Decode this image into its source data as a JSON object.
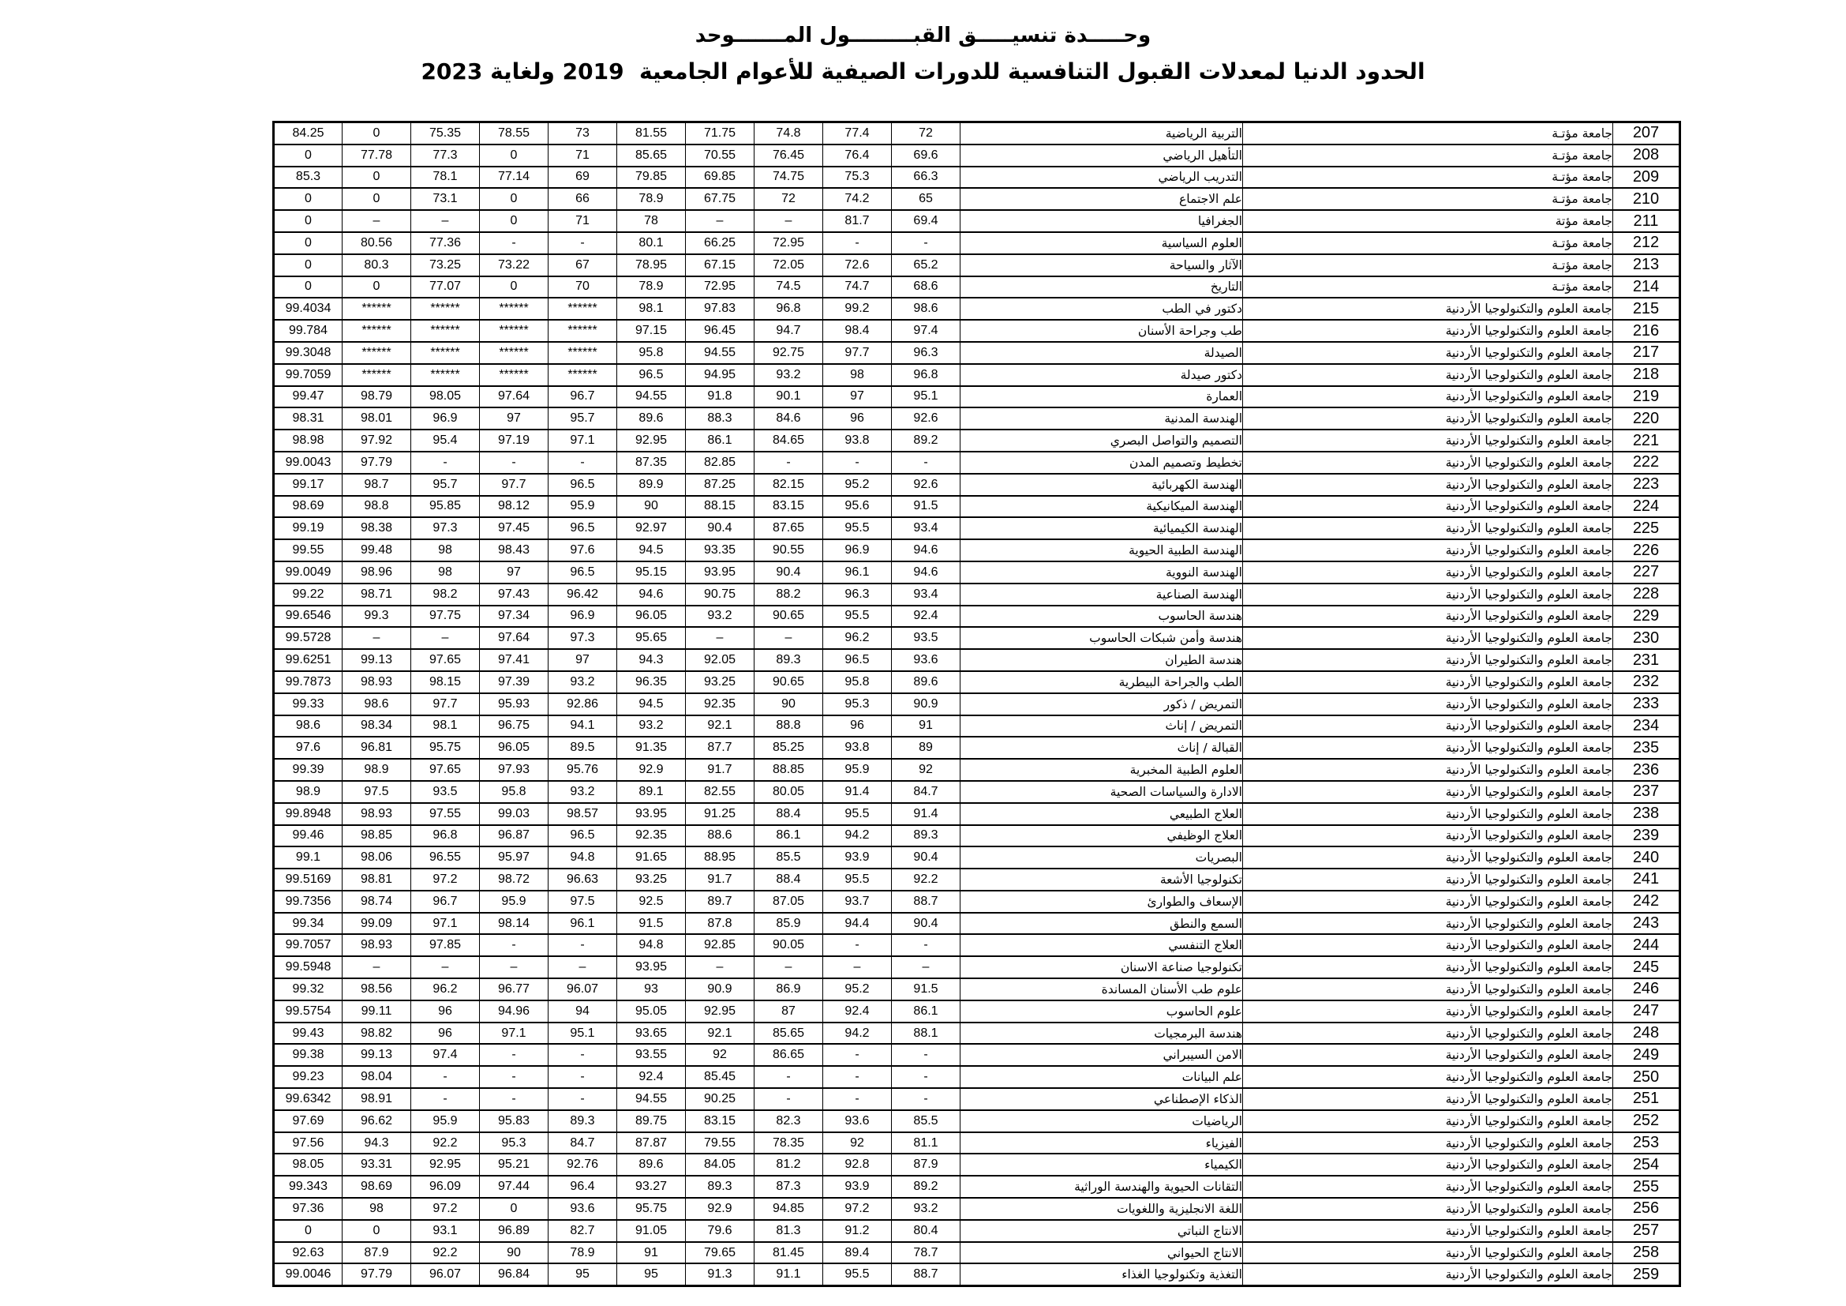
{
  "page": {
    "title_line1": "وحـــــدة تنسيـــــق القبـــــــــول المـــــــوحد",
    "title_line2": "الحدود الدنيا لمعدلات القبول التنافسية للدورات الصيفية للأعوام الجامعية  2019 ولغاية 2023"
  },
  "table": {
    "rows": [
      {
        "no": "207",
        "university": "جامعة مؤتـة",
        "program": "التربية الرياضية",
        "values": [
          "84.25",
          "0",
          "75.35",
          "78.55",
          "73",
          "81.55",
          "71.75",
          "74.8",
          "77.4",
          "72"
        ]
      },
      {
        "no": "208",
        "university": "جامعة مؤتـة",
        "program": "التأهيل الرياضي",
        "values": [
          "0",
          "77.78",
          "77.3",
          "0",
          "71",
          "85.65",
          "70.55",
          "76.45",
          "76.4",
          "69.6"
        ]
      },
      {
        "no": "209",
        "university": "جامعة مؤتـة",
        "program": "التدريب الرياضي",
        "values": [
          "85.3",
          "0",
          "78.1",
          "77.14",
          "69",
          "79.85",
          "69.85",
          "74.75",
          "75.3",
          "66.3"
        ]
      },
      {
        "no": "210",
        "university": "جامعة مؤتـة",
        "program": "علم الاجتماع",
        "values": [
          "0",
          "0",
          "73.1",
          "0",
          "66",
          "78.9",
          "67.75",
          "72",
          "74.2",
          "65"
        ]
      },
      {
        "no": "211",
        "university": "جامعة مؤتة",
        "program": "الجغرافيا",
        "values": [
          "0",
          "–",
          "–",
          "0",
          "71",
          "78",
          "–",
          "–",
          "81.7",
          "69.4"
        ]
      },
      {
        "no": "212",
        "university": "جامعة مؤتـة",
        "program": "العلوم السياسية",
        "values": [
          "0",
          "80.56",
          "77.36",
          "-",
          "-",
          "80.1",
          "66.25",
          "72.95",
          "-",
          "-"
        ]
      },
      {
        "no": "213",
        "university": "جامعة مؤتـة",
        "program": "الآثار والسياحة",
        "values": [
          "0",
          "80.3",
          "73.25",
          "73.22",
          "67",
          "78.95",
          "67.15",
          "72.05",
          "72.6",
          "65.2"
        ]
      },
      {
        "no": "214",
        "university": "جامعة مؤتـة",
        "program": "التاريخ",
        "values": [
          "0",
          "0",
          "77.07",
          "0",
          "70",
          "78.9",
          "72.95",
          "74.5",
          "74.7",
          "68.6"
        ]
      },
      {
        "no": "215",
        "university": "جامعة العلوم والتكنولوجيا الأردنية",
        "program": "دكتور في الطب",
        "values": [
          "99.4034",
          "******",
          "******",
          "******",
          "******",
          "98.1",
          "97.83",
          "96.8",
          "99.2",
          "98.6"
        ]
      },
      {
        "no": "216",
        "university": "جامعة العلوم والتكنولوجيا الأردنية",
        "program": "طب وجراحة الأسنان",
        "values": [
          "99.784",
          "******",
          "******",
          "******",
          "******",
          "97.15",
          "96.45",
          "94.7",
          "98.4",
          "97.4"
        ]
      },
      {
        "no": "217",
        "university": "جامعة العلوم والتكنولوجيا الأردنية",
        "program": "الصيدلة",
        "values": [
          "99.3048",
          "******",
          "******",
          "******",
          "******",
          "95.8",
          "94.55",
          "92.75",
          "97.7",
          "96.3"
        ]
      },
      {
        "no": "218",
        "university": "جامعة العلوم والتكنولوجيا الأردنية",
        "program": "دكتور صيدلة",
        "values": [
          "99.7059",
          "******",
          "******",
          "******",
          "******",
          "96.5",
          "94.95",
          "93.2",
          "98",
          "96.8"
        ]
      },
      {
        "no": "219",
        "university": "جامعة العلوم والتكنولوجيا الأردنية",
        "program": "العمارة",
        "values": [
          "99.47",
          "98.79",
          "98.05",
          "97.64",
          "96.7",
          "94.55",
          "91.8",
          "90.1",
          "97",
          "95.1"
        ]
      },
      {
        "no": "220",
        "university": "جامعة العلوم والتكنولوجيا الأردنية",
        "program": "الهندسة المدنية",
        "values": [
          "98.31",
          "98.01",
          "96.9",
          "97",
          "95.7",
          "89.6",
          "88.3",
          "84.6",
          "96",
          "92.6"
        ]
      },
      {
        "no": "221",
        "university": "جامعة العلوم والتكنولوجيا الأردنية",
        "program": "التصميم والتواصل البصري",
        "values": [
          "98.98",
          "97.92",
          "95.4",
          "97.19",
          "97.1",
          "92.95",
          "86.1",
          "84.65",
          "93.8",
          "89.2"
        ]
      },
      {
        "no": "222",
        "university": "جامعة العلوم والتكنولوجيا الأردنية",
        "program": "تخطيط وتصميم المدن",
        "values": [
          "99.0043",
          "97.79",
          "-",
          "-",
          "-",
          "87.35",
          "82.85",
          "-",
          "-",
          "-"
        ]
      },
      {
        "no": "223",
        "university": "جامعة العلوم والتكنولوجيا الأردنية",
        "program": "الهندسة الكهربائية",
        "values": [
          "99.17",
          "98.7",
          "95.7",
          "97.7",
          "96.5",
          "89.9",
          "87.25",
          "82.15",
          "95.2",
          "92.6"
        ]
      },
      {
        "no": "224",
        "university": "جامعة العلوم والتكنولوجيا الأردنية",
        "program": "الهندسة الميكانيكية",
        "values": [
          "98.69",
          "98.8",
          "95.85",
          "98.12",
          "95.9",
          "90",
          "88.15",
          "83.15",
          "95.6",
          "91.5"
        ]
      },
      {
        "no": "225",
        "university": "جامعة العلوم والتكنولوجيا الأردنية",
        "program": "الهندسة الكيميائية",
        "values": [
          "99.19",
          "98.38",
          "97.3",
          "97.45",
          "96.5",
          "92.97",
          "90.4",
          "87.65",
          "95.5",
          "93.4"
        ]
      },
      {
        "no": "226",
        "university": "جامعة العلوم والتكنولوجيا الأردنية",
        "program": "الهندسة الطبية الحيوية",
        "values": [
          "99.55",
          "99.48",
          "98",
          "98.43",
          "97.6",
          "94.5",
          "93.35",
          "90.55",
          "96.9",
          "94.6"
        ]
      },
      {
        "no": "227",
        "university": "جامعة العلوم والتكنولوجيا الأردنية",
        "program": "الهندسة النووية",
        "values": [
          "99.0049",
          "98.96",
          "98",
          "97",
          "96.5",
          "95.15",
          "93.95",
          "90.4",
          "96.1",
          "94.6"
        ]
      },
      {
        "no": "228",
        "university": "جامعة العلوم والتكنولوجيا الأردنية",
        "program": "الهندسة الصناعية",
        "values": [
          "99.22",
          "98.71",
          "98.2",
          "97.43",
          "96.42",
          "94.6",
          "90.75",
          "88.2",
          "96.3",
          "93.4"
        ]
      },
      {
        "no": "229",
        "university": "جامعة العلوم والتكنولوجيا الأردنية",
        "program": "هندسة الحاسوب",
        "values": [
          "99.6546",
          "99.3",
          "97.75",
          "97.34",
          "96.9",
          "96.05",
          "93.2",
          "90.65",
          "95.5",
          "92.4"
        ]
      },
      {
        "no": "230",
        "university": "جامعة العلوم والتكنولوجيا الأردنية",
        "program": "هندسة وأمن شبكات الحاسوب",
        "values": [
          "99.5728",
          "–",
          "–",
          "97.64",
          "97.3",
          "95.65",
          "–",
          "–",
          "96.2",
          "93.5"
        ]
      },
      {
        "no": "231",
        "university": "جامعة العلوم والتكنولوجيا الأردنية",
        "program": "هندسة الطيران",
        "values": [
          "99.6251",
          "99.13",
          "97.65",
          "97.41",
          "97",
          "94.3",
          "92.05",
          "89.3",
          "96.5",
          "93.6"
        ]
      },
      {
        "no": "232",
        "university": "جامعة العلوم والتكنولوجيا الأردنية",
        "program": "الطب والجراحة البيطرية",
        "values": [
          "99.7873",
          "98.93",
          "98.15",
          "97.39",
          "93.2",
          "96.35",
          "93.25",
          "90.65",
          "95.8",
          "89.6"
        ]
      },
      {
        "no": "233",
        "university": "جامعة العلوم والتكنولوجيا الأردنية",
        "program": "التمريض / ذكور",
        "values": [
          "99.33",
          "98.6",
          "97.7",
          "95.93",
          "92.86",
          "94.5",
          "92.35",
          "90",
          "95.3",
          "90.9"
        ]
      },
      {
        "no": "234",
        "university": "جامعة العلوم والتكنولوجيا الأردنية",
        "program": "التمريض / إناث",
        "values": [
          "98.6",
          "98.34",
          "98.1",
          "96.75",
          "94.1",
          "93.2",
          "92.1",
          "88.8",
          "96",
          "91"
        ]
      },
      {
        "no": "235",
        "university": "جامعة العلوم والتكنولوجيا الأردنية",
        "program": "القبالة / إناث",
        "values": [
          "97.6",
          "96.81",
          "95.75",
          "96.05",
          "89.5",
          "91.35",
          "87.7",
          "85.25",
          "93.8",
          "89"
        ]
      },
      {
        "no": "236",
        "university": "جامعة العلوم والتكنولوجيا الأردنية",
        "program": "العلوم الطبية المخبرية",
        "values": [
          "99.39",
          "98.9",
          "97.65",
          "97.93",
          "95.76",
          "92.9",
          "91.7",
          "88.85",
          "95.9",
          "92"
        ]
      },
      {
        "no": "237",
        "university": "جامعة العلوم والتكنولوجيا الأردنية",
        "program": "الادارة والسياسات الصحية",
        "values": [
          "98.9",
          "97.5",
          "93.5",
          "95.8",
          "93.2",
          "89.1",
          "82.55",
          "80.05",
          "91.4",
          "84.7"
        ]
      },
      {
        "no": "238",
        "university": "جامعة العلوم والتكنولوجيا الأردنية",
        "program": "العلاج الطبيعي",
        "values": [
          "99.8948",
          "98.93",
          "97.55",
          "99.03",
          "98.57",
          "93.95",
          "91.25",
          "88.4",
          "95.5",
          "91.4"
        ]
      },
      {
        "no": "239",
        "university": "جامعة العلوم والتكنولوجيا الأردنية",
        "program": "العلاج الوظيفي",
        "values": [
          "99.46",
          "98.85",
          "96.8",
          "96.87",
          "96.5",
          "92.35",
          "88.6",
          "86.1",
          "94.2",
          "89.3"
        ]
      },
      {
        "no": "240",
        "university": "جامعة العلوم والتكنولوجيا الأردنية",
        "program": "البصريات",
        "values": [
          "99.1",
          "98.06",
          "96.55",
          "95.97",
          "94.8",
          "91.65",
          "88.95",
          "85.5",
          "93.9",
          "90.4"
        ]
      },
      {
        "no": "241",
        "university": "جامعة العلوم والتكنولوجيا الأردنية",
        "program": "تكنولوجيا الأشعة",
        "values": [
          "99.5169",
          "98.81",
          "97.2",
          "98.72",
          "96.63",
          "93.25",
          "91.7",
          "88.4",
          "95.5",
          "92.2"
        ]
      },
      {
        "no": "242",
        "university": "جامعة العلوم والتكنولوجيا الأردنية",
        "program": "الإسعاف والطوارئ",
        "values": [
          "99.7356",
          "98.74",
          "96.7",
          "95.9",
          "97.5",
          "92.5",
          "89.7",
          "87.05",
          "93.7",
          "88.7"
        ]
      },
      {
        "no": "243",
        "university": "جامعة العلوم والتكنولوجيا الأردنية",
        "program": "السمع والنطق",
        "values": [
          "99.34",
          "99.09",
          "97.1",
          "98.14",
          "96.1",
          "91.5",
          "87.8",
          "85.9",
          "94.4",
          "90.4"
        ]
      },
      {
        "no": "244",
        "university": "جامعة العلوم والتكنولوجيا الأردنية",
        "program": "العلاج التنفسي",
        "values": [
          "99.7057",
          "98.93",
          "97.85",
          "-",
          "-",
          "94.8",
          "92.85",
          "90.05",
          "-",
          "-"
        ]
      },
      {
        "no": "245",
        "university": "جامعة العلوم والتكنولوجيا الأردنية",
        "program": "تكنولوجيا صناعة الاسنان",
        "values": [
          "99.5948",
          "–",
          "–",
          "–",
          "–",
          "93.95",
          "–",
          "–",
          "–",
          "–"
        ]
      },
      {
        "no": "246",
        "university": "جامعة العلوم والتكنولوجيا الأردنية",
        "program": "علوم طب الأسنان المساندة",
        "values": [
          "99.32",
          "98.56",
          "96.2",
          "96.77",
          "96.07",
          "93",
          "90.9",
          "86.9",
          "95.2",
          "91.5"
        ]
      },
      {
        "no": "247",
        "university": "جامعة العلوم والتكنولوجيا الأردنية",
        "program": "علوم الحاسوب",
        "values": [
          "99.5754",
          "99.11",
          "96",
          "94.96",
          "94",
          "95.05",
          "92.95",
          "87",
          "92.4",
          "86.1"
        ]
      },
      {
        "no": "248",
        "university": "جامعة العلوم والتكنولوجيا الأردنية",
        "program": "هندسة البرمجيات",
        "values": [
          "99.43",
          "98.82",
          "96",
          "97.1",
          "95.1",
          "93.65",
          "92.1",
          "85.65",
          "94.2",
          "88.1"
        ]
      },
      {
        "no": "249",
        "university": "جامعة العلوم والتكنولوجيا الأردنية",
        "program": "الامن السيبراني",
        "values": [
          "99.38",
          "99.13",
          "97.4",
          "-",
          "-",
          "93.55",
          "92",
          "86.65",
          "-",
          "-"
        ]
      },
      {
        "no": "250",
        "university": "جامعة العلوم والتكنولوجيا الأردنية",
        "program": "علم البيانات",
        "values": [
          "99.23",
          "98.04",
          "-",
          "-",
          "-",
          "92.4",
          "85.45",
          "-",
          "-",
          "-"
        ]
      },
      {
        "no": "251",
        "university": "جامعة العلوم والتكنولوجيا الأردنية",
        "program": "الذكاء الإصطناعي",
        "values": [
          "99.6342",
          "98.91",
          "-",
          "-",
          "-",
          "94.55",
          "90.25",
          "-",
          "-",
          "-"
        ]
      },
      {
        "no": "252",
        "university": "جامعة العلوم والتكنولوجيا الأردنية",
        "program": "الرياضيات",
        "values": [
          "97.69",
          "96.62",
          "95.9",
          "95.83",
          "89.3",
          "89.75",
          "83.15",
          "82.3",
          "93.6",
          "85.5"
        ]
      },
      {
        "no": "253",
        "university": "جامعة العلوم والتكنولوجيا الأردنية",
        "program": "الفيزياء",
        "values": [
          "97.56",
          "94.3",
          "92.2",
          "95.3",
          "84.7",
          "87.87",
          "79.55",
          "78.35",
          "92",
          "81.1"
        ]
      },
      {
        "no": "254",
        "university": "جامعة العلوم والتكنولوجيا الأردنية",
        "program": "الكيمياء",
        "values": [
          "98.05",
          "93.31",
          "92.95",
          "95.21",
          "92.76",
          "89.6",
          "84.05",
          "81.2",
          "92.8",
          "87.9"
        ]
      },
      {
        "no": "255",
        "university": "جامعة العلوم والتكنولوجيا الأردنية",
        "program": "التقانات الحيوية والهندسة الوراثية",
        "values": [
          "99.343",
          "98.69",
          "96.09",
          "97.44",
          "96.4",
          "93.27",
          "89.3",
          "87.3",
          "93.9",
          "89.2"
        ]
      },
      {
        "no": "256",
        "university": "جامعة العلوم والتكنولوجيا الأردنية",
        "program": "اللغة الانجليزية واللغويات",
        "values": [
          "97.36",
          "98",
          "97.2",
          "0",
          "93.6",
          "95.75",
          "92.9",
          "94.85",
          "97.2",
          "93.2"
        ]
      },
      {
        "no": "257",
        "university": "جامعة العلوم والتكنولوجيا الأردنية",
        "program": "الانتاج النباتي",
        "values": [
          "0",
          "0",
          "93.1",
          "96.89",
          "82.7",
          "91.05",
          "79.6",
          "81.3",
          "91.2",
          "80.4"
        ]
      },
      {
        "no": "258",
        "university": "جامعة العلوم والتكنولوجيا الأردنية",
        "program": "الانتاج الحيواني",
        "values": [
          "92.63",
          "87.9",
          "92.2",
          "90",
          "78.9",
          "91",
          "79.65",
          "81.45",
          "89.4",
          "78.7"
        ]
      },
      {
        "no": "259",
        "university": "جامعة العلوم والتكنولوجيا الأردنية",
        "program": "التغذية وتكنولوجيا الغذاء",
        "values": [
          "99.0046",
          "97.79",
          "96.07",
          "96.84",
          "95",
          "95",
          "91.3",
          "91.1",
          "95.5",
          "88.7"
        ]
      }
    ]
  }
}
